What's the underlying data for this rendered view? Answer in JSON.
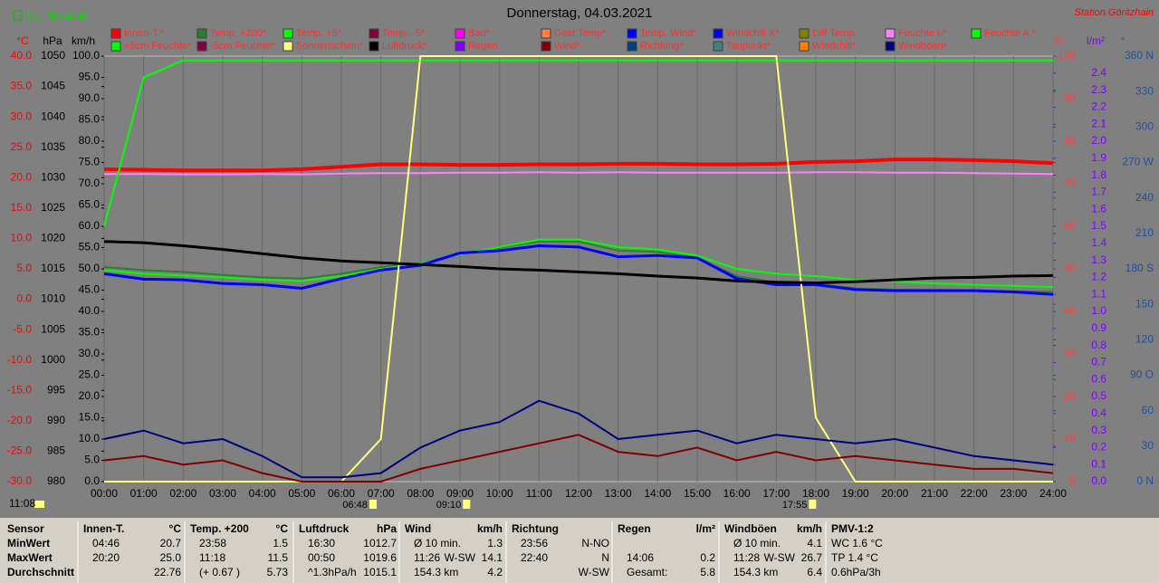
{
  "header": {
    "month_avg": "5.1 Monat-Ø",
    "station": "Station Göritzhain",
    "time": "11:08"
  },
  "chart_data": {
    "type": "line",
    "title": "Donnerstag, 04.03.2021",
    "x": [
      0,
      1,
      2,
      3,
      4,
      5,
      6,
      7,
      8,
      9,
      10,
      11,
      12,
      13,
      14,
      15,
      16,
      17,
      18,
      19,
      20,
      21,
      22,
      23,
      24
    ],
    "xlim": [
      0,
      24
    ],
    "xticks": [
      {
        "value": 0,
        "label": "00:00"
      },
      {
        "value": 1,
        "label": "01:00"
      },
      {
        "value": 2,
        "label": "02:00"
      },
      {
        "value": 3,
        "label": "03:00"
      },
      {
        "value": 4,
        "label": "04:00"
      },
      {
        "value": 5,
        "label": "05:00"
      },
      {
        "value": 6,
        "label": "06:00"
      },
      {
        "value": 7,
        "label": "07:00"
      },
      {
        "value": 8,
        "label": "08:00"
      },
      {
        "value": 9,
        "label": "09:00"
      },
      {
        "value": 10,
        "label": "10:00"
      },
      {
        "value": 11,
        "label": "11:00"
      },
      {
        "value": 12,
        "label": "12:00"
      },
      {
        "value": 13,
        "label": "13:00"
      },
      {
        "value": 14,
        "label": "14:00"
      },
      {
        "value": 15,
        "label": "15:00"
      },
      {
        "value": 16,
        "label": "16:00"
      },
      {
        "value": 17,
        "label": "17:00"
      },
      {
        "value": 18,
        "label": "18:00"
      },
      {
        "value": 19,
        "label": "19:00"
      },
      {
        "value": 20,
        "label": "20:00"
      },
      {
        "value": 21,
        "label": "21:00"
      },
      {
        "value": 22,
        "label": "22:00"
      },
      {
        "value": 23,
        "label": "23:00"
      },
      {
        "value": 24,
        "label": "24:00"
      }
    ],
    "axes": [
      {
        "unit": "°C",
        "color": "#ff0000",
        "lim": [
          -30,
          40
        ],
        "ticks": [
          {
            "value": -30,
            "label": "-30.0"
          },
          {
            "value": -25,
            "label": "-25.0"
          },
          {
            "value": -20,
            "label": "-20.0"
          },
          {
            "value": -15,
            "label": "-15.0"
          },
          {
            "value": -10,
            "label": "-10.0"
          },
          {
            "value": -5,
            "label": "-5.0"
          },
          {
            "value": 0,
            "label": "0.0"
          },
          {
            "value": 5,
            "label": "5.0"
          },
          {
            "value": 10,
            "label": "10.0"
          },
          {
            "value": 15,
            "label": "15.0"
          },
          {
            "value": 20,
            "label": "20.0"
          },
          {
            "value": 25,
            "label": "25.0"
          },
          {
            "value": 30,
            "label": "30.0"
          },
          {
            "value": 35,
            "label": "35.0"
          },
          {
            "value": 40,
            "label": "40.0"
          }
        ]
      },
      {
        "unit": "hPa",
        "color": "#000000",
        "lim": [
          980,
          1050
        ],
        "ticks": [
          980,
          985,
          990,
          995,
          1000,
          1005,
          1010,
          1015,
          1020,
          1025,
          1030,
          1035,
          1040,
          1045,
          1050
        ]
      },
      {
        "unit": "km/h",
        "color": "#000000",
        "lim": [
          0,
          100
        ],
        "ticks": [
          {
            "value": 0,
            "label": "0.0"
          },
          {
            "value": 5,
            "label": "5.0"
          },
          {
            "value": 10,
            "label": "10.0"
          },
          {
            "value": 15,
            "label": "15.0"
          },
          {
            "value": 20,
            "label": "20.0"
          },
          {
            "value": 25,
            "label": "25.0"
          },
          {
            "value": 30,
            "label": "30.0"
          },
          {
            "value": 35,
            "label": "35.0"
          },
          {
            "value": 40,
            "label": "40.0"
          },
          {
            "value": 45,
            "label": "45.0"
          },
          {
            "value": 50,
            "label": "50.0"
          },
          {
            "value": 55,
            "label": "55.0"
          },
          {
            "value": 60,
            "label": "60.0"
          },
          {
            "value": 65,
            "label": "65.0"
          },
          {
            "value": 70,
            "label": "70.0"
          },
          {
            "value": 75,
            "label": "75.0"
          },
          {
            "value": 80,
            "label": "80.0"
          },
          {
            "value": 85,
            "label": "85.0"
          },
          {
            "value": 90,
            "label": "90.0"
          },
          {
            "value": 95,
            "label": "95.0"
          },
          {
            "value": 100,
            "label": "100.0"
          }
        ]
      },
      {
        "unit": "%",
        "color": "#ff4040",
        "lim": [
          0,
          100
        ],
        "ticks": [
          0,
          10,
          20,
          30,
          40,
          50,
          60,
          70,
          80,
          90,
          100
        ]
      },
      {
        "unit": "l/m²",
        "color": "#8000ff",
        "lim": [
          0,
          2.5
        ],
        "ticks": [
          {
            "value": 0,
            "label": "0.0"
          },
          0.1,
          0.2,
          0.3,
          0.4,
          0.5,
          0.6,
          0.7,
          0.8,
          0.9,
          {
            "value": 1,
            "label": "1.0"
          },
          1.1,
          1.2,
          1.3,
          1.4,
          1.5,
          1.6,
          1.7,
          1.8,
          1.9,
          {
            "value": 2,
            "label": "2.0"
          },
          2.1,
          2.2,
          2.3,
          2.4
        ]
      },
      {
        "unit": "°",
        "color": "#2050a0",
        "lim": [
          0,
          360
        ],
        "ticks": [
          {
            "value": 0,
            "label": "0   N"
          },
          30,
          60,
          {
            "value": 90,
            "label": "90 O"
          },
          120,
          150,
          {
            "value": 180,
            "label": "180 S"
          },
          210,
          240,
          {
            "value": 270,
            "label": "270 W"
          },
          300,
          330,
          {
            "value": 360,
            "label": "360 N"
          }
        ]
      }
    ],
    "series": [
      {
        "name": "Innen-T.*",
        "color": "#ff0000",
        "axis": 0,
        "values": [
          21.4,
          21.3,
          21.2,
          21.2,
          21.2,
          21.4,
          21.8,
          22.2,
          22.2,
          22.1,
          22.1,
          22.2,
          22.2,
          22.3,
          22.3,
          22.2,
          22.2,
          22.3,
          22.6,
          22.7,
          23.0,
          23.0,
          22.9,
          22.7,
          22.4
        ]
      },
      {
        "name": "Temp. +200*",
        "color": "#2e7d32",
        "axis": 0,
        "values": [
          5.3,
          4.8,
          4.5,
          4.0,
          3.6,
          3.4,
          4.2,
          5.3,
          5.9,
          7.5,
          8.5,
          9.5,
          9.5,
          8.0,
          7.8,
          6.8,
          3.8,
          2.8,
          2.5,
          1.8,
          1.6,
          1.6,
          1.5,
          1.3,
          1.2
        ]
      },
      {
        "name": "Temp. +5*",
        "color": "#00ff00",
        "axis": 0,
        "values": [
          4.8,
          4.2,
          3.9,
          3.6,
          3.2,
          3.0,
          3.8,
          5.0,
          5.9,
          7.4,
          8.6,
          9.8,
          9.8,
          8.6,
          8.2,
          7.2,
          5.0,
          4.2,
          3.8,
          3.2,
          2.9,
          2.6,
          2.4,
          2.2,
          2.0
        ]
      },
      {
        "name": "Temp. -5*",
        "color": "#800040"
      },
      {
        "name": "Bad*",
        "color": "#ff00ff"
      },
      {
        "name": "Gast Temp*",
        "color": "#ff8040"
      },
      {
        "name": "Temp. Wind*",
        "color": "#0000ff"
      },
      {
        "name": "Windchill X*",
        "color": "#0000ff",
        "axis": 0,
        "values": [
          4.2,
          3.3,
          3.2,
          2.6,
          2.4,
          1.8,
          3.4,
          4.8,
          5.6,
          7.6,
          8.0,
          8.8,
          8.6,
          7.0,
          7.2,
          6.8,
          3.4,
          2.4,
          2.4,
          1.6,
          1.4,
          1.4,
          1.4,
          1.2,
          0.8
        ]
      },
      {
        "name": "Diff Temp.",
        "color": "#808000"
      },
      {
        "name": "Feuchte I.*",
        "color": "#ff80ff",
        "axis": 3,
        "values": [
          72.3,
          72.3,
          72.2,
          72.2,
          72.3,
          72.2,
          72.4,
          72.5,
          72.5,
          72.6,
          72.6,
          72.7,
          72.6,
          72.7,
          72.6,
          72.6,
          72.6,
          72.6,
          72.7,
          72.7,
          72.6,
          72.6,
          72.5,
          72.4,
          72.3
        ]
      },
      {
        "name": "Feuchte A.*",
        "color": "#00ff00",
        "axis": 3,
        "values": [
          60,
          95,
          99,
          99,
          99,
          99,
          99,
          99,
          99,
          99,
          99,
          99,
          99,
          99,
          99,
          99,
          99,
          99,
          99,
          99,
          99,
          99,
          99,
          99,
          99
        ]
      },
      {
        "name": "+5cm Feuchte*",
        "color": "#00ff00"
      },
      {
        "name": "-5cm Feuchte*",
        "color": "#800040"
      },
      {
        "name": "Sonnenschein*",
        "color": "#ffff80",
        "axis": 3,
        "values": [
          0,
          0,
          0,
          0,
          0,
          0,
          0,
          10,
          100,
          100,
          100,
          100,
          100,
          100,
          100,
          100,
          100,
          100,
          15,
          0,
          0,
          0,
          0,
          0,
          0
        ]
      },
      {
        "name": "Luftdruck*",
        "color": "#000000",
        "axis": 1,
        "values": [
          1019.5,
          1019.3,
          1018.8,
          1018.2,
          1017.5,
          1016.8,
          1016.3,
          1016.0,
          1015.7,
          1015.4,
          1015.0,
          1014.8,
          1014.5,
          1014.2,
          1013.8,
          1013.5,
          1013.0,
          1012.8,
          1012.7,
          1012.9,
          1013.2,
          1013.5,
          1013.6,
          1013.8,
          1013.9
        ]
      },
      {
        "name": "Regen",
        "color": "#8000ff"
      },
      {
        "name": "Wind*",
        "color": "#800000",
        "axis": 2,
        "values": [
          5,
          6,
          4,
          5,
          2,
          0,
          0,
          0,
          3,
          5,
          7,
          9,
          11,
          7,
          6,
          8,
          5,
          7,
          5,
          6,
          5,
          4,
          3,
          3,
          2
        ]
      },
      {
        "name": "Richtung*",
        "color": "#004080"
      },
      {
        "name": "Taupunkt*",
        "color": "#408080"
      },
      {
        "name": "Windchill*",
        "color": "#ff8000"
      },
      {
        "name": "Windböen*",
        "color": "#000080",
        "axis": 2,
        "values": [
          10,
          12,
          9,
          10,
          6,
          1,
          1,
          2,
          8,
          12,
          14,
          19,
          16,
          10,
          11,
          12,
          9,
          11,
          10,
          9,
          10,
          8,
          6,
          5,
          4
        ]
      }
    ],
    "markers": [
      "06:48",
      "09:10",
      "17:55"
    ]
  },
  "table": {
    "sensor": {
      "header": "Sensor",
      "rows": [
        "MinWert",
        "MaxWert",
        "Durchschnitt"
      ]
    },
    "blocks": [
      {
        "header": [
          "Innen-T.",
          "°C"
        ],
        "rows": [
          [
            "04:46",
            "20.7"
          ],
          [
            "20:20",
            "25.0"
          ],
          [
            "22.76"
          ]
        ]
      },
      {
        "header": [
          "Temp. +200",
          "°C"
        ],
        "rows": [
          [
            "23:58",
            "1.5"
          ],
          [
            "11:18",
            "11.5"
          ],
          [
            "(+ 0.67 )",
            "5.73"
          ]
        ]
      },
      {
        "header": [
          "Luftdruck",
          "hPa"
        ],
        "rows": [
          [
            "16:30",
            "1012.7"
          ],
          [
            "00:50",
            "1019.6"
          ],
          [
            "^1.3hPa/h",
            "1015.1"
          ]
        ]
      },
      {
        "header": [
          "Wind",
          "km/h"
        ],
        "rows": [
          [
            "Ø 10 min.",
            "1.3"
          ],
          [
            "11:26",
            "W-SW",
            "14.1"
          ],
          [
            "154.3 km",
            "4.2"
          ]
        ]
      },
      {
        "header": [
          "Richtung"
        ],
        "rows": [
          [
            "23:56",
            "N-NO"
          ],
          [
            "22:40",
            "N"
          ],
          [
            "W-SW"
          ]
        ]
      },
      {
        "header": [
          "Regen",
          "l/m²"
        ],
        "rows": [
          [],
          [
            "14:06",
            "0.2"
          ],
          [
            "Gesamt:",
            "5.8"
          ]
        ]
      },
      {
        "header": [
          "Windböen",
          "km/h"
        ],
        "rows": [
          [
            "Ø 10 min.",
            "4.1"
          ],
          [
            "11:28",
            "W-SW",
            "26.7"
          ],
          [
            "154.3 km",
            "6.4"
          ]
        ]
      },
      {
        "header": [
          "PMV-1:2"
        ],
        "rows": [
          [
            "WC 1.6 °C"
          ],
          [
            "TP 1.4 °C"
          ],
          [
            "0.6hPa/3h"
          ]
        ]
      }
    ]
  }
}
